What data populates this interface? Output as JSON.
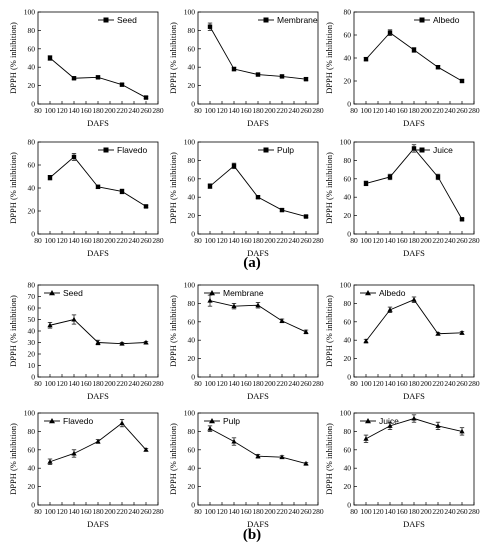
{
  "panels": [
    {
      "label": "(a)"
    },
    {
      "label": "(b)"
    }
  ],
  "chart_data": [
    {
      "type": "line",
      "panel": "a",
      "marker": "square",
      "legend": "Seed",
      "xlabel": "DAFS",
      "ylabel": "DPPH (% inhibition)",
      "xlim": [
        80,
        280
      ],
      "ylim": [
        0,
        100
      ],
      "xticks": [
        80,
        100,
        120,
        140,
        160,
        180,
        200,
        220,
        240,
        260,
        280
      ],
      "yticks": [
        0,
        20,
        40,
        60,
        80,
        100
      ],
      "x": [
        100,
        140,
        180,
        220,
        260
      ],
      "y": [
        50,
        28,
        29,
        21,
        7
      ],
      "err": [
        2.5,
        1.5,
        1.5,
        1.5,
        1
      ]
    },
    {
      "type": "line",
      "panel": "a",
      "marker": "square",
      "legend": "Membrane",
      "xlabel": "DAFS",
      "ylabel": "DPPH (% inhibition)",
      "xlim": [
        80,
        280
      ],
      "ylim": [
        0,
        100
      ],
      "xticks": [
        80,
        100,
        120,
        140,
        160,
        180,
        200,
        220,
        240,
        260,
        280
      ],
      "yticks": [
        0,
        20,
        40,
        60,
        80,
        100
      ],
      "x": [
        100,
        140,
        180,
        220,
        260
      ],
      "y": [
        84,
        38,
        32,
        30,
        27
      ],
      "err": [
        4,
        2,
        1.5,
        1.5,
        1.5
      ]
    },
    {
      "type": "line",
      "panel": "a",
      "marker": "square",
      "legend": "Albedo",
      "xlabel": "DAFS",
      "ylabel": "DPPH (% inhibition)",
      "xlim": [
        80,
        280
      ],
      "ylim": [
        0,
        80
      ],
      "xticks": [
        80,
        100,
        120,
        140,
        160,
        180,
        200,
        220,
        240,
        260,
        280
      ],
      "yticks": [
        0,
        20,
        40,
        60,
        80
      ],
      "x": [
        100,
        140,
        180,
        220,
        260
      ],
      "y": [
        39,
        62,
        47,
        32,
        20
      ],
      "err": [
        1.5,
        2.5,
        2,
        1.5,
        1
      ]
    },
    {
      "type": "line",
      "panel": "a",
      "marker": "square",
      "legend": "Flavedo",
      "xlabel": "DAFS",
      "ylabel": "DPPH (% inhibition)",
      "xlim": [
        80,
        280
      ],
      "ylim": [
        0,
        80
      ],
      "xticks": [
        80,
        100,
        120,
        140,
        160,
        180,
        200,
        220,
        240,
        260,
        280
      ],
      "yticks": [
        0,
        20,
        40,
        60,
        80
      ],
      "x": [
        100,
        140,
        180,
        220,
        260
      ],
      "y": [
        49,
        67,
        41,
        37,
        24
      ],
      "err": [
        2,
        3,
        1.5,
        2,
        1
      ]
    },
    {
      "type": "line",
      "panel": "a",
      "marker": "square",
      "legend": "Pulp",
      "xlabel": "DAFS",
      "ylabel": "DPPH (% inhibition)",
      "xlim": [
        80,
        280
      ],
      "ylim": [
        0,
        100
      ],
      "xticks": [
        80,
        100,
        120,
        140,
        160,
        180,
        200,
        220,
        240,
        260,
        280
      ],
      "yticks": [
        0,
        20,
        40,
        60,
        80,
        100
      ],
      "x": [
        100,
        140,
        180,
        220,
        260
      ],
      "y": [
        52,
        74,
        40,
        26,
        19
      ],
      "err": [
        2.5,
        3,
        1.5,
        1.5,
        1
      ]
    },
    {
      "type": "line",
      "panel": "a",
      "marker": "square",
      "legend": "Juice",
      "xlabel": "DAFS",
      "ylabel": "DPPH (% inhibition)",
      "xlim": [
        80,
        280
      ],
      "ylim": [
        0,
        100
      ],
      "xticks": [
        80,
        100,
        120,
        140,
        160,
        180,
        200,
        220,
        240,
        260,
        280
      ],
      "yticks": [
        0,
        20,
        40,
        60,
        80,
        100
      ],
      "x": [
        100,
        140,
        180,
        220,
        260
      ],
      "y": [
        55,
        62,
        93,
        62,
        16
      ],
      "err": [
        2.5,
        3,
        4,
        3,
        1
      ]
    },
    {
      "type": "line",
      "panel": "b",
      "marker": "triangle",
      "legend": "Seed",
      "xlabel": "DAFS",
      "ylabel": "DPPH (% inhibition)",
      "xlim": [
        80,
        280
      ],
      "ylim": [
        0,
        80
      ],
      "xticks": [
        80,
        100,
        120,
        140,
        160,
        180,
        200,
        220,
        240,
        260,
        280
      ],
      "yticks": [
        0,
        10,
        20,
        30,
        40,
        50,
        60,
        70,
        80
      ],
      "x": [
        100,
        140,
        180,
        220,
        260
      ],
      "y": [
        45,
        50,
        30,
        29,
        30
      ],
      "err": [
        2.5,
        4,
        2,
        1,
        1
      ]
    },
    {
      "type": "line",
      "panel": "b",
      "marker": "triangle",
      "legend": "Membrane",
      "xlabel": "DAFS",
      "ylabel": "DPPH (% inhibition)",
      "xlim": [
        80,
        280
      ],
      "ylim": [
        0,
        100
      ],
      "xticks": [
        80,
        100,
        120,
        140,
        160,
        180,
        200,
        220,
        240,
        260,
        280
      ],
      "yticks": [
        0,
        20,
        40,
        60,
        80,
        100
      ],
      "x": [
        100,
        140,
        180,
        220,
        260
      ],
      "y": [
        83,
        77,
        78,
        61,
        49
      ],
      "err": [
        6,
        3,
        3,
        2,
        2
      ]
    },
    {
      "type": "line",
      "panel": "b",
      "marker": "triangle",
      "legend": "Albedo",
      "xlabel": "DAFS",
      "ylabel": "DPPH (% inhibition)",
      "xlim": [
        80,
        280
      ],
      "ylim": [
        0,
        100
      ],
      "xticks": [
        80,
        100,
        120,
        140,
        160,
        180,
        200,
        220,
        240,
        260,
        280
      ],
      "yticks": [
        0,
        20,
        40,
        60,
        80,
        100
      ],
      "x": [
        100,
        140,
        180,
        220,
        260
      ],
      "y": [
        39,
        73,
        84,
        47,
        48
      ],
      "err": [
        2,
        3,
        3,
        1.5,
        1.5
      ]
    },
    {
      "type": "line",
      "panel": "b",
      "marker": "triangle",
      "legend": "Flavedo",
      "xlabel": "DAFS",
      "ylabel": "DPPH (% inhibition)",
      "xlim": [
        80,
        280
      ],
      "ylim": [
        0,
        100
      ],
      "xticks": [
        80,
        100,
        120,
        140,
        160,
        180,
        200,
        220,
        240,
        260,
        280
      ],
      "yticks": [
        0,
        20,
        40,
        60,
        80,
        100
      ],
      "x": [
        100,
        140,
        180,
        220,
        260
      ],
      "y": [
        47,
        56,
        69,
        89,
        60
      ],
      "err": [
        3,
        4,
        2,
        4,
        1.5
      ]
    },
    {
      "type": "line",
      "panel": "b",
      "marker": "triangle",
      "legend": "Pulp",
      "xlabel": "DAFS",
      "ylabel": "DPPH (% inhibition)",
      "xlim": [
        80,
        280
      ],
      "ylim": [
        0,
        100
      ],
      "xticks": [
        80,
        100,
        120,
        140,
        160,
        180,
        200,
        220,
        240,
        260,
        280
      ],
      "yticks": [
        0,
        20,
        40,
        60,
        80,
        100
      ],
      "x": [
        100,
        140,
        180,
        220,
        260
      ],
      "y": [
        83,
        69,
        53,
        52,
        45
      ],
      "err": [
        3,
        4,
        2,
        1.5,
        1
      ]
    },
    {
      "type": "line",
      "panel": "b",
      "marker": "triangle",
      "legend": "Juice",
      "xlabel": "DAFS",
      "ylabel": "DPPH (% inhibition)",
      "xlim": [
        80,
        280
      ],
      "ylim": [
        0,
        100
      ],
      "xticks": [
        80,
        100,
        120,
        140,
        160,
        180,
        200,
        220,
        240,
        260,
        280
      ],
      "yticks": [
        0,
        20,
        40,
        60,
        80,
        100
      ],
      "x": [
        100,
        140,
        180,
        220,
        260
      ],
      "y": [
        72,
        86,
        94,
        86,
        80
      ],
      "err": [
        4,
        4,
        4,
        4,
        4
      ]
    }
  ]
}
